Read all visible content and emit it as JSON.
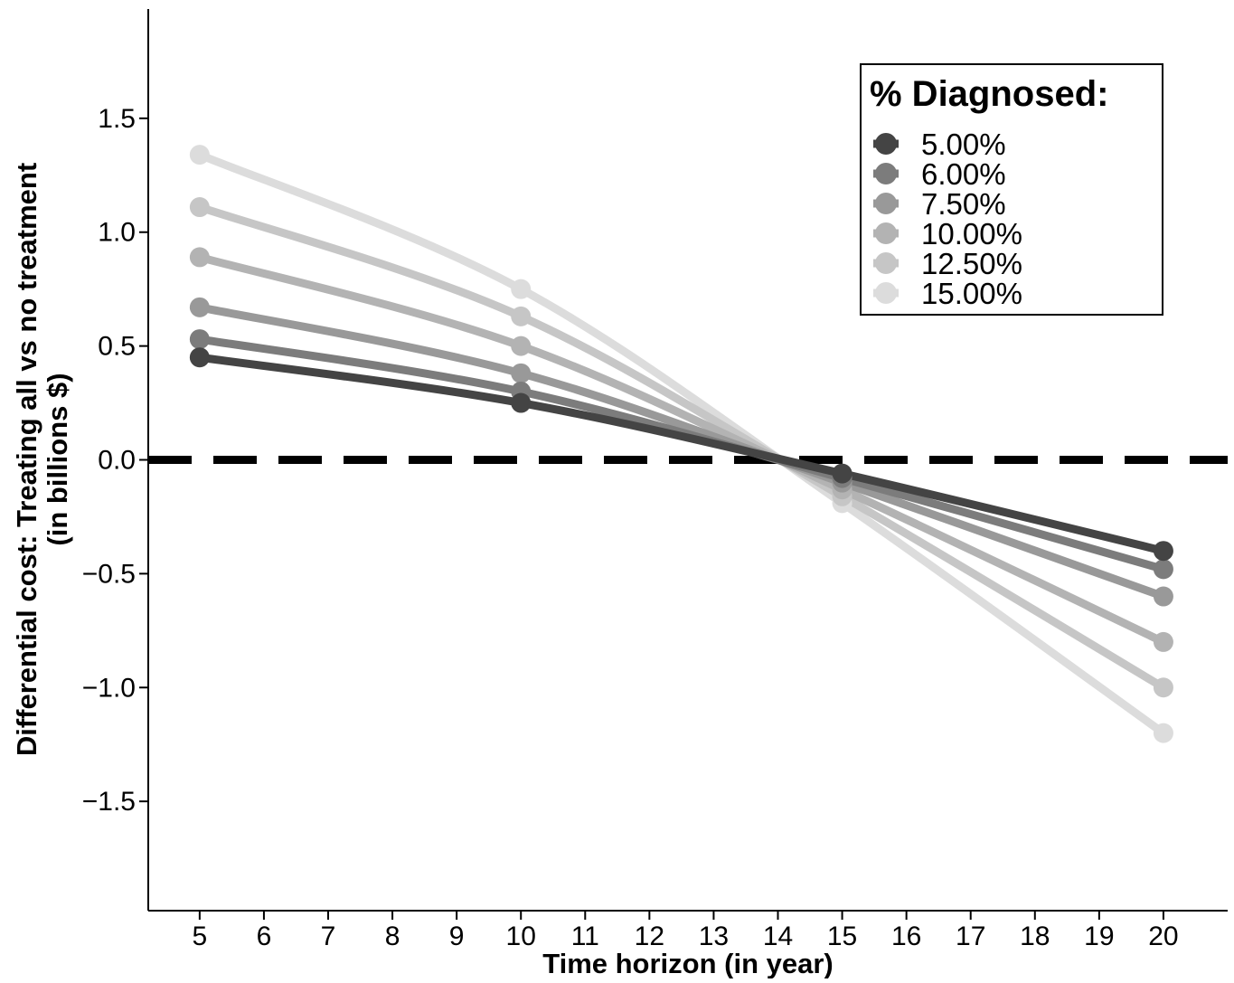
{
  "chart_data": {
    "type": "line",
    "xlabel": "Time horizon (in year)",
    "ylabel_line1": "Differential cost: Treating all vs no treatment",
    "ylabel_line2": "(in billions $)",
    "xlim": [
      4.2,
      21.0
    ],
    "ylim": [
      -1.98,
      1.98
    ],
    "x_ticks": [
      5,
      6,
      7,
      8,
      9,
      10,
      11,
      12,
      13,
      14,
      15,
      16,
      17,
      18,
      19,
      20
    ],
    "y_ticks": [
      -1.5,
      -1.0,
      -0.5,
      0.0,
      0.5,
      1.0,
      1.5
    ],
    "y_tick_labels": [
      "−1.5",
      "−1.0",
      "−0.5",
      "0.0",
      "0.5",
      "1.0",
      "1.5"
    ],
    "reference_line": {
      "y": 0,
      "style": "dashed",
      "color": "#000000"
    },
    "legend": {
      "title": "% Diagnosed:",
      "position": "top-right"
    },
    "x": [
      5,
      10,
      15,
      20
    ],
    "series": [
      {
        "name": "5.00%",
        "color": "#444444",
        "values": [
          0.45,
          0.25,
          -0.06,
          -0.4
        ]
      },
      {
        "name": "6.00%",
        "color": "#7c7c7c",
        "values": [
          0.53,
          0.3,
          -0.08,
          -0.48
        ]
      },
      {
        "name": "7.50%",
        "color": "#999999",
        "values": [
          0.67,
          0.38,
          -0.1,
          -0.6
        ]
      },
      {
        "name": "10.00%",
        "color": "#b3b3b3",
        "values": [
          0.89,
          0.5,
          -0.13,
          -0.8
        ]
      },
      {
        "name": "12.50%",
        "color": "#c6c6c6",
        "values": [
          1.11,
          0.63,
          -0.16,
          -1.0
        ]
      },
      {
        "name": "15.00%",
        "color": "#dcdcdc",
        "values": [
          1.34,
          0.75,
          -0.19,
          -1.2
        ]
      }
    ]
  }
}
